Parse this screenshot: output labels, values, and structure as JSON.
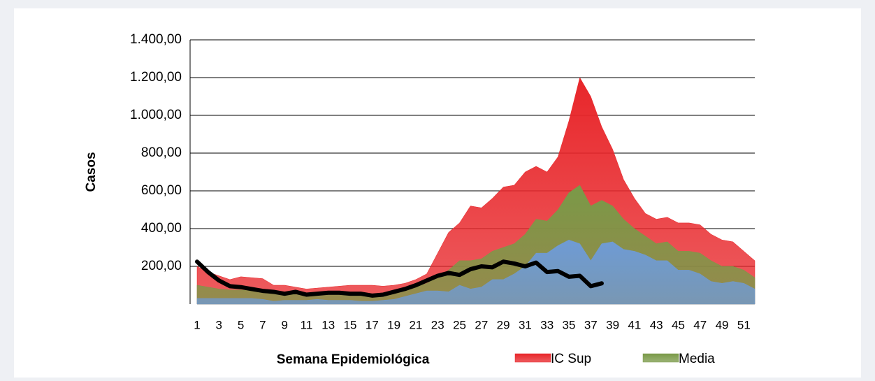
{
  "chart_data": {
    "type": "area",
    "x_label": "Semana Epidemiológica",
    "y_label": "Casos",
    "categories": [
      "1",
      null,
      "3",
      null,
      "5",
      null,
      "7",
      null,
      "9",
      null,
      "11",
      null,
      "13",
      null,
      "15",
      null,
      "17",
      null,
      "19",
      null,
      "21",
      null,
      "23",
      null,
      "25",
      null,
      "27",
      null,
      "29",
      null,
      "31",
      null,
      "33",
      null,
      "35",
      null,
      "37",
      null,
      "39",
      null,
      "41",
      null,
      "43",
      null,
      "45",
      null,
      "47",
      null,
      "49",
      null,
      "51",
      null
    ],
    "ylim": [
      0,
      1400
    ],
    "yticks": [
      {
        "value": 200,
        "label": "200,00"
      },
      {
        "value": 400,
        "label": "400,00"
      },
      {
        "value": 600,
        "label": "600,00"
      },
      {
        "value": 800,
        "label": "800,00"
      },
      {
        "value": 1000,
        "label": "1.000,00"
      },
      {
        "value": 1200,
        "label": "1.200,00"
      },
      {
        "value": 1400,
        "label": "1.400,00"
      }
    ],
    "grid": true,
    "legend": "bottom-right",
    "series": [
      {
        "name": "IC Sup",
        "kind": "area",
        "color": "#e8262a",
        "values": [
          200,
          170,
          150,
          130,
          145,
          140,
          135,
          100,
          100,
          90,
          80,
          85,
          90,
          95,
          100,
          100,
          100,
          95,
          100,
          110,
          130,
          160,
          270,
          380,
          430,
          520,
          510,
          560,
          620,
          630,
          700,
          730,
          700,
          780,
          970,
          1200,
          1100,
          940,
          820,
          660,
          560,
          480,
          450,
          460,
          430,
          430,
          420,
          370,
          340,
          330,
          280,
          230
        ]
      },
      {
        "name": "Media",
        "kind": "area",
        "color": "#7a9a48",
        "values": [
          100,
          90,
          80,
          75,
          75,
          70,
          65,
          55,
          55,
          50,
          50,
          50,
          55,
          55,
          55,
          55,
          50,
          50,
          60,
          75,
          90,
          110,
          140,
          180,
          230,
          230,
          240,
          280,
          300,
          320,
          370,
          450,
          440,
          500,
          590,
          630,
          520,
          550,
          520,
          450,
          400,
          360,
          320,
          330,
          280,
          280,
          270,
          230,
          200,
          200,
          180,
          140
        ]
      },
      {
        "kind": "area",
        "color": "#6f9bd5",
        "values": [
          30,
          30,
          30,
          30,
          30,
          30,
          25,
          15,
          20,
          20,
          20,
          25,
          20,
          20,
          20,
          15,
          15,
          20,
          25,
          40,
          55,
          70,
          70,
          65,
          100,
          80,
          90,
          130,
          130,
          160,
          200,
          270,
          270,
          310,
          340,
          320,
          230,
          320,
          330,
          290,
          280,
          260,
          230,
          230,
          180,
          180,
          160,
          120,
          110,
          120,
          110,
          80
        ]
      },
      {
        "kind": "line",
        "color": "#000000",
        "values": [
          225,
          170,
          125,
          95,
          90,
          80,
          70,
          65,
          55,
          65,
          50,
          55,
          60,
          60,
          55,
          55,
          45,
          50,
          65,
          80,
          100,
          125,
          150,
          165,
          155,
          185,
          200,
          195,
          225,
          215,
          200,
          220,
          170,
          175,
          145,
          150,
          95,
          110,
          null,
          null,
          null,
          null,
          null,
          null,
          null,
          null,
          null,
          null,
          null,
          null,
          null,
          null
        ]
      }
    ]
  }
}
